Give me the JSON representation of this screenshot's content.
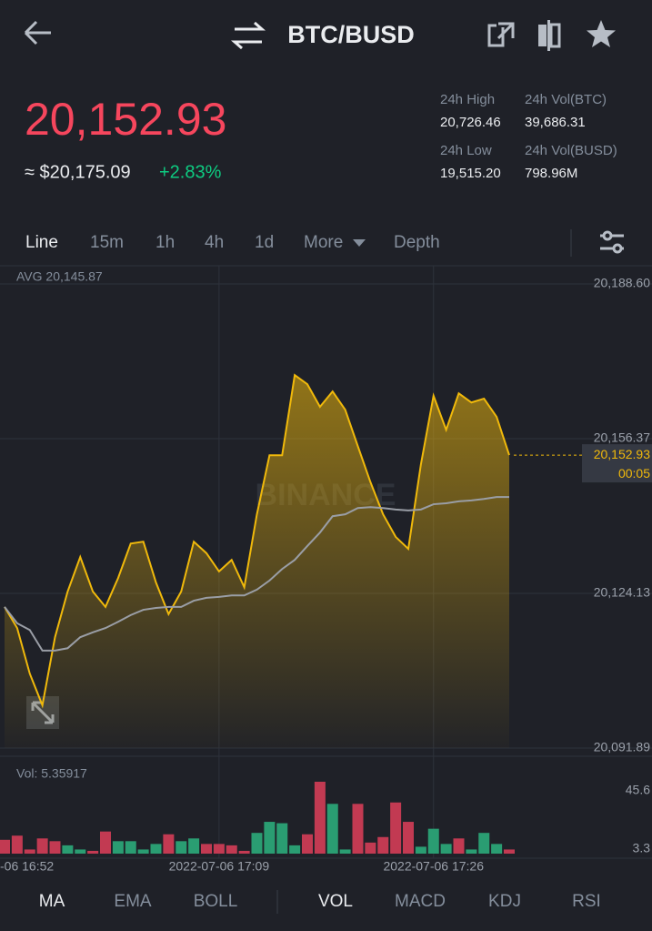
{
  "header": {
    "pair": "BTC/BUSD"
  },
  "price": {
    "last": "20,152.93",
    "usd": "≈ $20,175.09",
    "change": "+2.83%"
  },
  "stats": [
    {
      "label": "24h High",
      "value": "20,726.46"
    },
    {
      "label": "24h Vol(BTC)",
      "value": "39,686.31"
    },
    {
      "label": "24h Low",
      "value": "19,515.20"
    },
    {
      "label": "24h Vol(BUSD)",
      "value": "798.96M"
    }
  ],
  "tabs": [
    "Line",
    "15m",
    "1h",
    "4h",
    "1d",
    "More",
    "Depth"
  ],
  "indicators": [
    "MA",
    "EMA",
    "BOLL",
    "VOL",
    "MACD",
    "KDJ",
    "RSI"
  ],
  "chart_data": [
    {
      "type": "line",
      "annotation": "AVG 20,145.87",
      "watermark": "BINANCE",
      "ylim": [
        20091.89,
        20188.6
      ],
      "yticks": [
        {
          "value": 20188.6,
          "label": "20,188.60"
        },
        {
          "value": 20156.37,
          "label": "20,156.37"
        },
        {
          "value": 20124.13,
          "label": "20,124.13"
        },
        {
          "value": 20091.89,
          "label": "20,091.89"
        }
      ],
      "last_price": {
        "value": 20152.93,
        "label": "20,152.93"
      },
      "countdown": "00:05",
      "series": [
        {
          "color": "#f0b90b",
          "values": [
            20121.3,
            20116.9,
            20107.4,
            20100.8,
            20115.0,
            20124.5,
            20131.7,
            20124.5,
            20121.3,
            20127.3,
            20134.5,
            20134.9,
            20126.4,
            20119.8,
            20124.5,
            20134.9,
            20132.5,
            20128.7,
            20131.1,
            20125.4,
            20140.6,
            20152.9,
            20152.9,
            20169.6,
            20167.7,
            20163.0,
            20166.2,
            20162.4,
            20154.8,
            20147.3,
            20140.6,
            20135.9,
            20133.4,
            20151.0,
            20165.3,
            20158.2,
            20165.8,
            20163.9,
            20164.7,
            20160.9,
            20152.93
          ]
        },
        {
          "color": "#9a9ea6",
          "values": [
            20121.3,
            20117.9,
            20116.5,
            20112.2,
            20112.2,
            20112.7,
            20115.0,
            20116.0,
            20116.9,
            20118.2,
            20119.6,
            20120.7,
            20121.1,
            20121.3,
            20121.3,
            20122.6,
            20123.2,
            20123.4,
            20123.7,
            20123.7,
            20124.9,
            20126.8,
            20129.2,
            20131.1,
            20134.0,
            20136.8,
            20140.2,
            20140.6,
            20141.9,
            20142.1,
            20141.9,
            20141.6,
            20141.4,
            20141.6,
            20142.7,
            20142.9,
            20143.3,
            20143.5,
            20143.8,
            20144.2,
            20144.2
          ]
        }
      ]
    },
    {
      "type": "bar",
      "annotation": "Vol: 5.35917",
      "x": [
        "-06 16:52",
        null,
        null,
        null,
        null,
        null,
        null,
        null,
        null,
        null,
        null,
        null,
        null,
        null,
        null,
        null,
        null,
        "2022-07-06 17:09",
        null,
        null,
        null,
        null,
        null,
        null,
        null,
        null,
        null,
        null,
        null,
        null,
        null,
        null,
        null,
        null,
        "2022-07-06 17:26",
        null,
        null,
        null,
        null,
        null,
        null
      ],
      "ylim": [
        -3.3,
        64.5
      ],
      "yticks": [
        45.6,
        3.3
      ],
      "values": [
        10,
        13,
        3,
        11,
        9,
        6,
        3,
        2,
        16,
        9,
        9,
        3,
        7,
        14,
        9,
        11,
        7,
        7,
        6,
        2,
        15,
        23,
        22,
        6,
        14,
        52,
        36,
        3,
        36,
        8,
        12,
        37,
        23,
        5,
        18,
        7,
        11,
        3,
        15,
        7,
        3
      ],
      "colors": [
        "#c23a52",
        "#c23a52",
        "#c23a52",
        "#c23a52",
        "#c23a52",
        "#2a9d72",
        "#2a9d72",
        "#c23a52",
        "#c23a52",
        "#2a9d72",
        "#2a9d72",
        "#2a9d72",
        "#2a9d72",
        "#c23a52",
        "#2a9d72",
        "#2a9d72",
        "#c23a52",
        "#c23a52",
        "#c23a52",
        "#c23a52",
        "#2a9d72",
        "#2a9d72",
        "#2a9d72",
        "#2a9d72",
        "#c23a52",
        "#c23a52",
        "#2a9d72",
        "#2a9d72",
        "#c23a52",
        "#c23a52",
        "#c23a52",
        "#c23a52",
        "#c23a52",
        "#2a9d72",
        "#2a9d72",
        "#2a9d72",
        "#c23a52",
        "#2a9d72",
        "#2a9d72",
        "#2a9d72",
        "#c23a52"
      ]
    }
  ]
}
